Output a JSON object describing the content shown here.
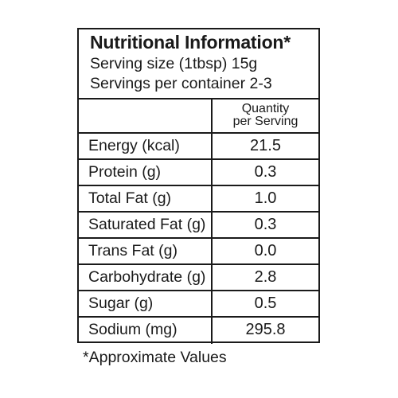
{
  "label": {
    "title": "Nutritional Information*",
    "serving_size": "Serving size (1tbsp) 15g",
    "servings_per_container": "Servings per container 2-3",
    "column_header_line1": "Quantity",
    "column_header_line2": "per Serving",
    "rows": [
      {
        "name": "Energy (kcal)",
        "value": "21.5"
      },
      {
        "name": "Protein (g)",
        "value": "0.3"
      },
      {
        "name": "Total Fat (g)",
        "value": "1.0"
      },
      {
        "name": "Saturated Fat (g)",
        "value": "0.3"
      },
      {
        "name": "Trans Fat (g)",
        "value": "0.0"
      },
      {
        "name": "Carbohydrate (g)",
        "value": "2.8"
      },
      {
        "name": "Sugar (g)",
        "value": "0.5"
      },
      {
        "name": "Sodium (mg)",
        "value": "295.8"
      }
    ],
    "footnote": "*Approximate Values"
  }
}
